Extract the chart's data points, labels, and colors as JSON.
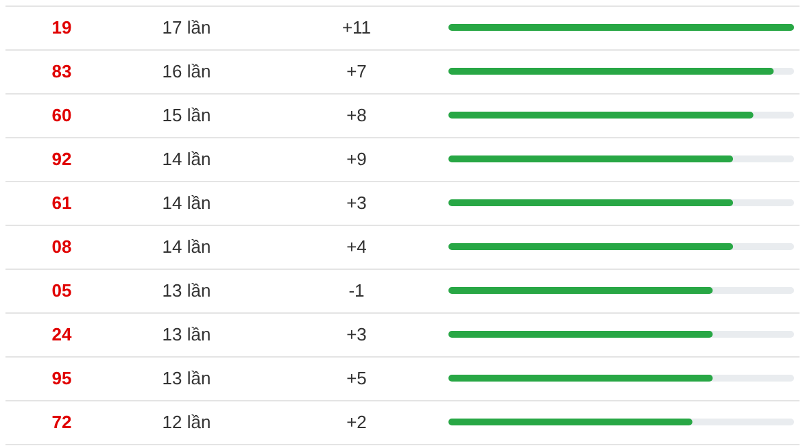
{
  "chart_data": {
    "type": "bar",
    "orientation": "horizontal",
    "categories": [
      "19",
      "83",
      "60",
      "92",
      "61",
      "08",
      "05",
      "24",
      "95",
      "72"
    ],
    "values": [
      17,
      16,
      15,
      14,
      14,
      14,
      13,
      13,
      13,
      12
    ],
    "value_labels": [
      "17 lần",
      "16 lần",
      "15 lần",
      "14 lần",
      "14 lần",
      "14 lần",
      "13 lần",
      "13 lần",
      "13 lần",
      "12 lần"
    ],
    "annotations": [
      "+11",
      "+7",
      "+8",
      "+9",
      "+3",
      "+4",
      "-1",
      "+3",
      "+5",
      "+2"
    ],
    "color": "#28a745",
    "xlim": [
      0,
      17
    ],
    "tick_labels": "y",
    "grid": "y"
  }
}
